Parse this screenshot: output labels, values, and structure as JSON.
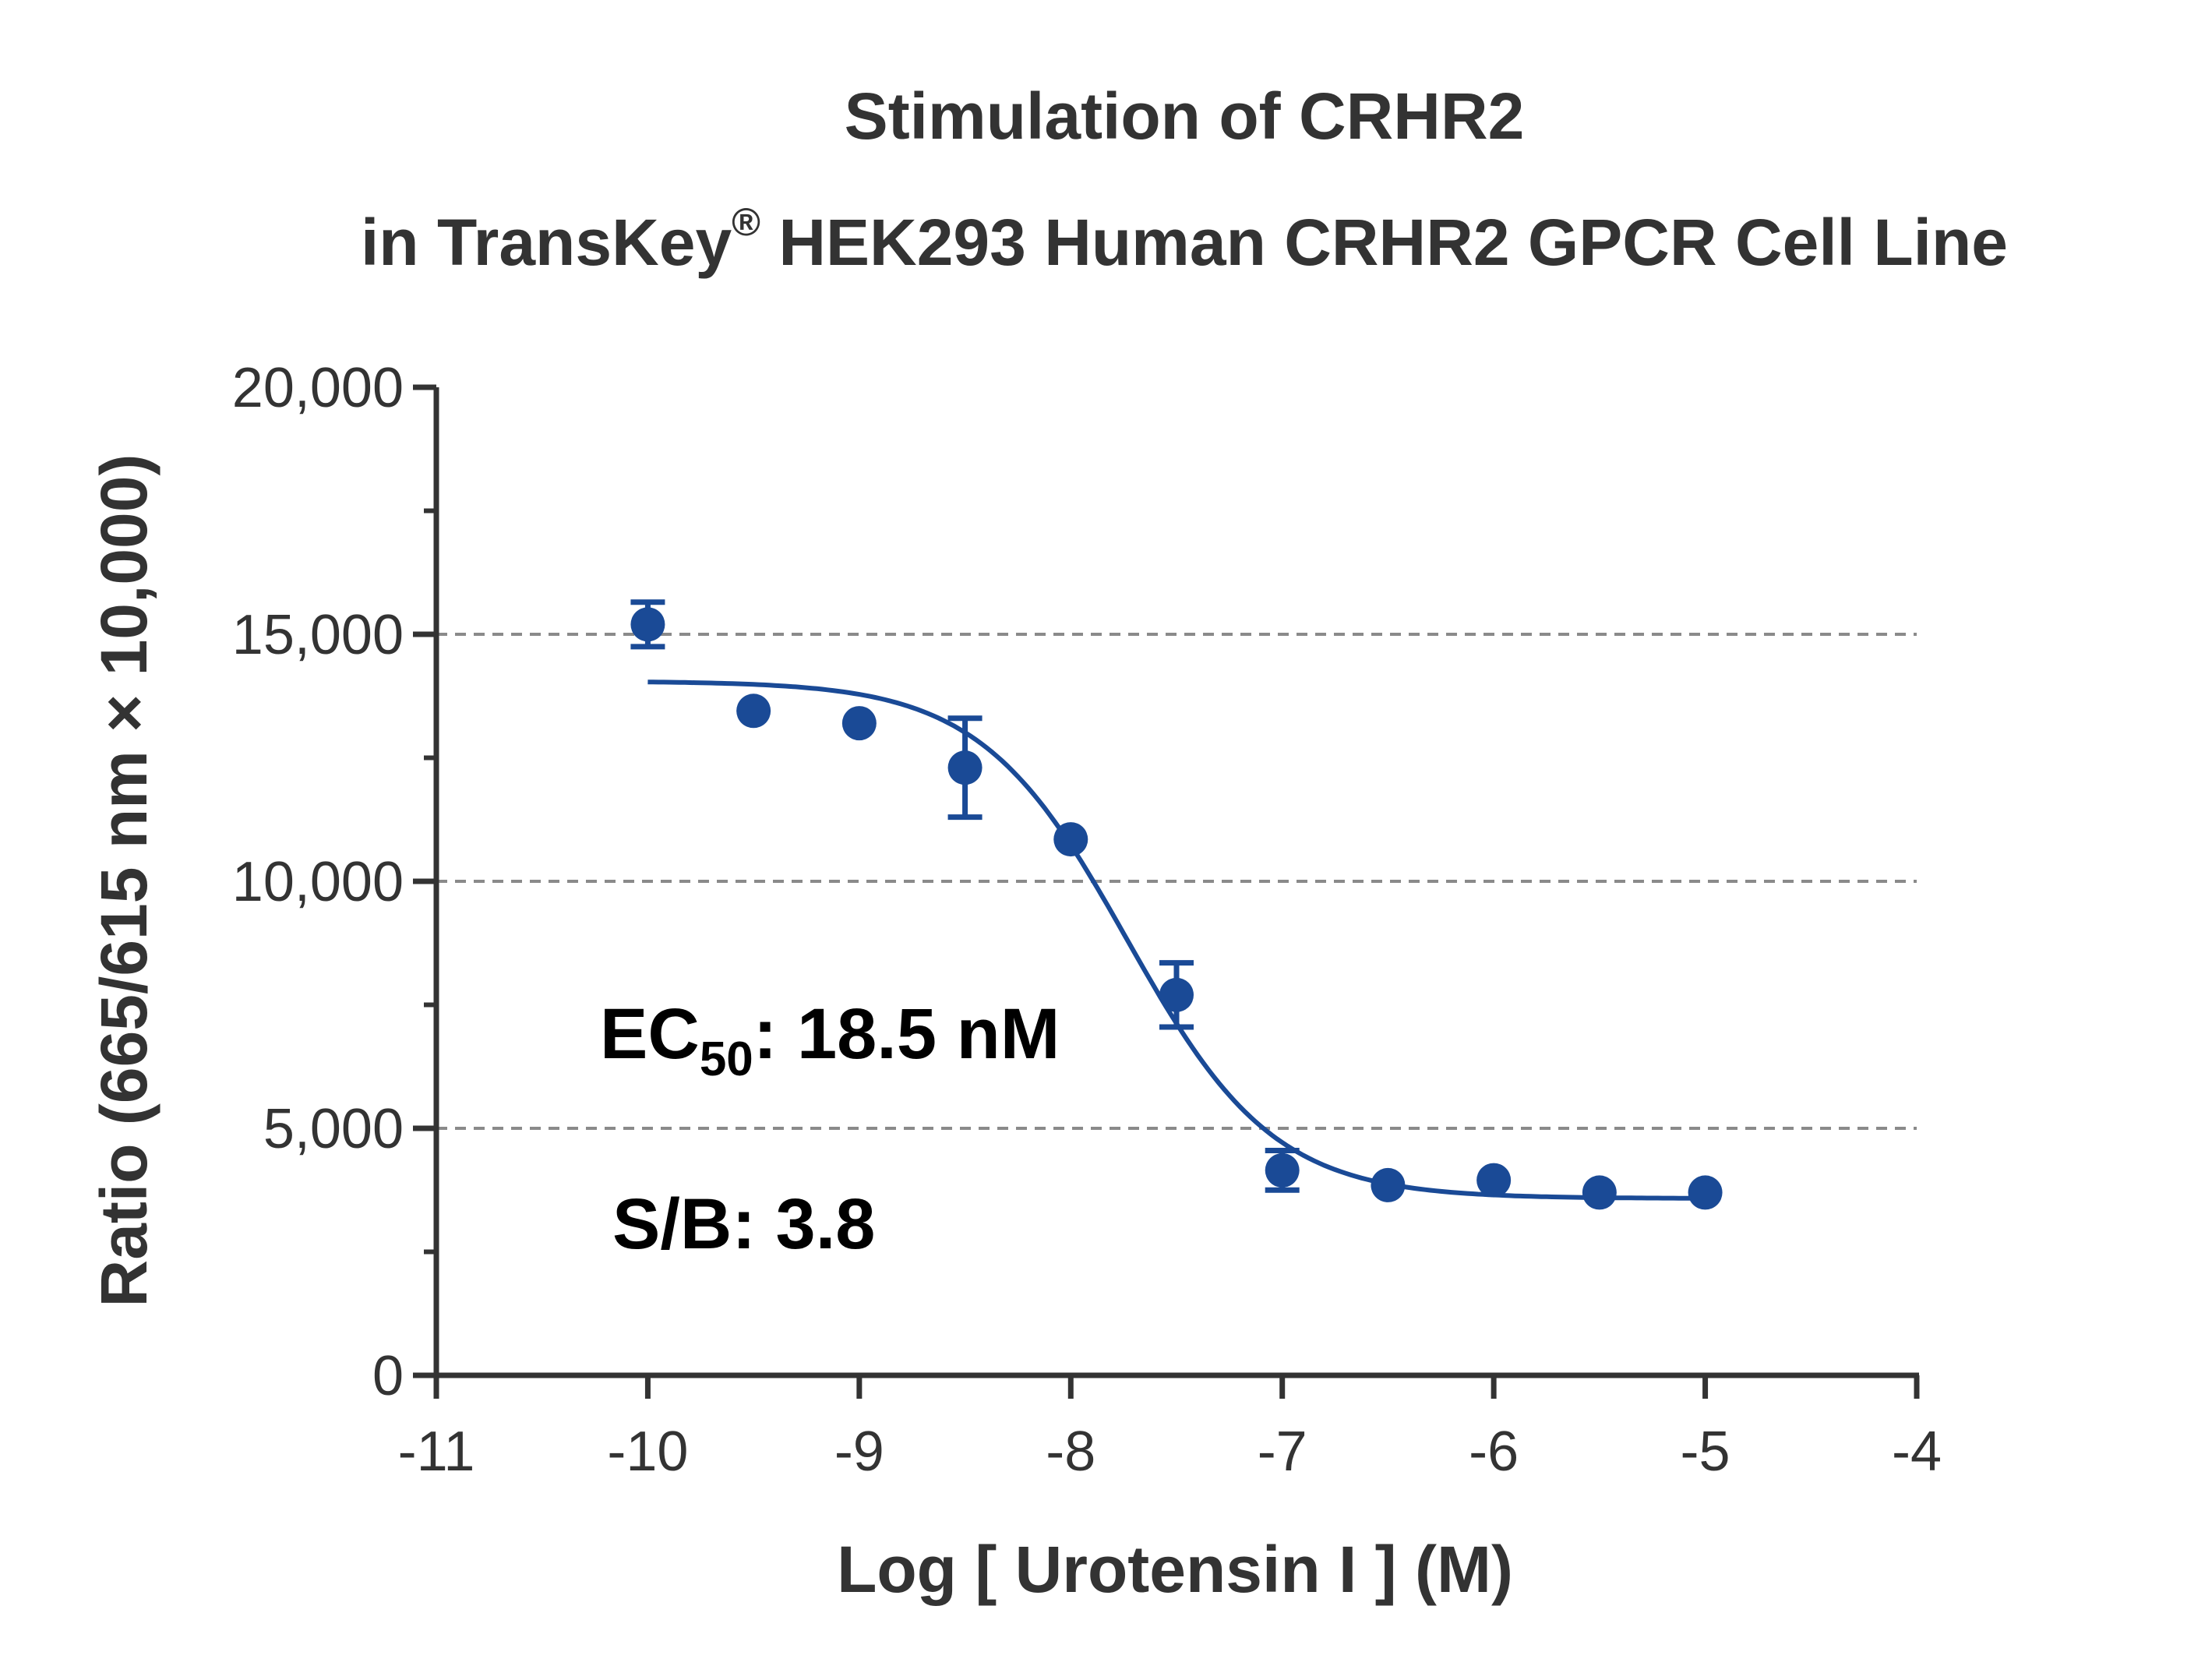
{
  "chart_data": {
    "type": "scatter",
    "title_line1": "Stimulation of  CRHR2",
    "title_line2_pre": "in TransKey",
    "title_line2_sup": "®",
    "title_line2_post": " HEK293 Human CRHR2 GPCR Cell Line",
    "xlabel": "Log [ Urotensin I ]  (M)",
    "ylabel": "Ratio (665/615 nm × 10,000)",
    "xlim": [
      -11,
      -4
    ],
    "ylim": [
      0,
      20000
    ],
    "x_ticks": [
      -11,
      -10,
      -9,
      -8,
      -7,
      -6,
      -5,
      -4
    ],
    "x_tick_labels": [
      "-11",
      "-10",
      "-9",
      "-8",
      "-7",
      "-6",
      "-5",
      "-4"
    ],
    "y_ticks": [
      0,
      5000,
      10000,
      15000,
      20000
    ],
    "y_tick_labels": [
      "0",
      "5,000",
      "10,000",
      "15,000",
      "20,000"
    ],
    "y_minor_ticks": [
      2500,
      7500,
      12500,
      17500
    ],
    "gridlines_y": [
      5000,
      10000,
      15000
    ],
    "grid": "dashed horizontal at major y ticks",
    "color": "#1a4a96",
    "series": [
      {
        "x": [
          -10,
          -9.5,
          -9,
          -8.5,
          -8,
          -7.5,
          -7,
          -6.5,
          -6,
          -5.5,
          -5
        ],
        "y": [
          15200,
          13450,
          13200,
          12300,
          10850,
          7700,
          4150,
          3850,
          3950,
          3700,
          3700
        ],
        "error": [
          450,
          0,
          0,
          1000,
          0,
          650,
          400,
          0,
          0,
          0,
          0
        ]
      }
    ],
    "fit": {
      "model": "4PL",
      "bottom": 3580,
      "top": 14050,
      "log_ec50": -7.733,
      "hill": 1.25,
      "x_range": [
        -10,
        -5
      ]
    },
    "annotations": {
      "ec50_prefix": "EC",
      "ec50_sub": "50",
      "ec50_value": ": 18.5 nM",
      "sb": "S/B: 3.8"
    }
  }
}
